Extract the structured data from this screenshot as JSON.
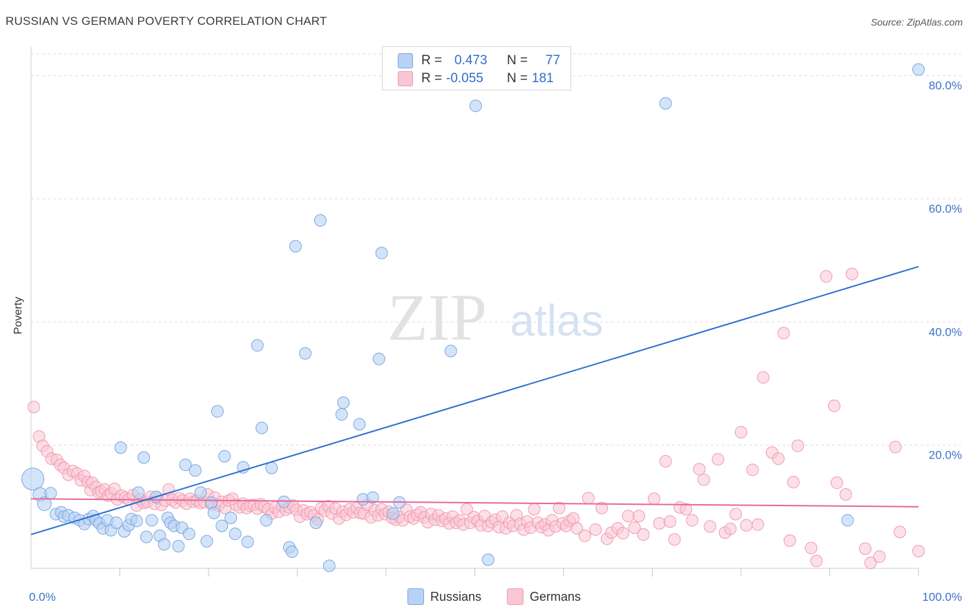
{
  "title": "RUSSIAN VS GERMAN POVERTY CORRELATION CHART",
  "source": "Source: ZipAtlas.com",
  "watermark": {
    "zip": "ZIP",
    "atlas": "atlas"
  },
  "legend": {
    "r_label": "R =",
    "n_label": "N =",
    "russians": {
      "r": "0.473",
      "n": "77"
    },
    "germans": {
      "r": "-0.055",
      "n": "181"
    }
  },
  "bottom_legend": {
    "russians": "Russians",
    "germans": "Germans"
  },
  "colors": {
    "russians_fill": "#b7d2f4",
    "russians_stroke": "#7aa7e0",
    "russians_line": "#2b6fd0",
    "germans_fill": "#f9c6d3",
    "germans_stroke": "#f09ab2",
    "germans_line": "#e8679a",
    "tick_label": "#3b73c9",
    "grid": "#dddddd"
  },
  "chart_data": {
    "type": "scatter",
    "title": "RUSSIAN VS GERMAN POVERTY CORRELATION CHART",
    "xlabel": "",
    "ylabel": "Poverty",
    "xlim": [
      0,
      100
    ],
    "ylim": [
      0,
      85
    ],
    "x_tick_labels": [
      "0.0%",
      "100.0%"
    ],
    "y_ticks": [
      20,
      40,
      60,
      80
    ],
    "y_tick_labels": [
      "20.0%",
      "40.0%",
      "60.0%",
      "80.0%"
    ],
    "grid": true,
    "legend_position": "top-center",
    "series": [
      {
        "name": "Russians",
        "r": 0.473,
        "n": 77,
        "trend": {
          "x": [
            0,
            100
          ],
          "y": [
            5.5,
            49
          ]
        },
        "points": [
          [
            0.2,
            14.5
          ],
          [
            1,
            12
          ],
          [
            1.5,
            10.5
          ],
          [
            2.2,
            12.2
          ],
          [
            2.8,
            8.8
          ],
          [
            3.4,
            9.1
          ],
          [
            3.7,
            8.4
          ],
          [
            4.2,
            8.6
          ],
          [
            4.9,
            8.2
          ],
          [
            5.5,
            7.8
          ],
          [
            6,
            7.2
          ],
          [
            6.5,
            8
          ],
          [
            7,
            8.5
          ],
          [
            7.3,
            7.8
          ],
          [
            7.7,
            7.3
          ],
          [
            8.1,
            6.5
          ],
          [
            8.6,
            7.8
          ],
          [
            9,
            6.2
          ],
          [
            9.6,
            7.4
          ],
          [
            10.1,
            19.6
          ],
          [
            10.5,
            6
          ],
          [
            11,
            7
          ],
          [
            11.3,
            8
          ],
          [
            11.9,
            7.7
          ],
          [
            12.1,
            12.3
          ],
          [
            12.7,
            18
          ],
          [
            13,
            5.1
          ],
          [
            13.6,
            7.8
          ],
          [
            14.1,
            11.6
          ],
          [
            14.5,
            5.3
          ],
          [
            15,
            3.9
          ],
          [
            15.4,
            8.2
          ],
          [
            15.7,
            7.4
          ],
          [
            16.1,
            6.9
          ],
          [
            16.6,
            3.6
          ],
          [
            17,
            6.6
          ],
          [
            17.4,
            16.8
          ],
          [
            17.8,
            5.6
          ],
          [
            18.5,
            15.9
          ],
          [
            19.1,
            12.3
          ],
          [
            19.8,
            4.4
          ],
          [
            20.3,
            10.7
          ],
          [
            20.6,
            9
          ],
          [
            21,
            25.5
          ],
          [
            21.5,
            6.9
          ],
          [
            21.8,
            18.2
          ],
          [
            22.5,
            8.2
          ],
          [
            23,
            5.6
          ],
          [
            23.9,
            16.4
          ],
          [
            24.4,
            4.3
          ],
          [
            25.5,
            36.2
          ],
          [
            26,
            22.8
          ],
          [
            26.5,
            7.8
          ],
          [
            27.1,
            16.3
          ],
          [
            28.5,
            10.8
          ],
          [
            29.1,
            3.4
          ],
          [
            29.4,
            2.7
          ],
          [
            29.8,
            52.3
          ],
          [
            30.9,
            34.9
          ],
          [
            32.1,
            7.4
          ],
          [
            32.6,
            56.5
          ],
          [
            33.6,
            0.4
          ],
          [
            35,
            25
          ],
          [
            35.2,
            26.9
          ],
          [
            37,
            23.4
          ],
          [
            37.4,
            11.2
          ],
          [
            38.5,
            11.5
          ],
          [
            39.2,
            34
          ],
          [
            39.5,
            51.2
          ],
          [
            40.8,
            8.9
          ],
          [
            41.5,
            10.7
          ],
          [
            47.3,
            35.3
          ],
          [
            50.1,
            75.1
          ],
          [
            51.5,
            1.4
          ],
          [
            71.5,
            75.5
          ],
          [
            92,
            7.8
          ],
          [
            100,
            81
          ]
        ]
      },
      {
        "name": "Germans",
        "r": -0.055,
        "n": 181,
        "trend": {
          "x": [
            0,
            100
          ],
          "y": [
            11.3,
            10
          ]
        },
        "points": [
          [
            0.3,
            26.2
          ],
          [
            0.9,
            21.4
          ],
          [
            1.3,
            19.9
          ],
          [
            1.8,
            19
          ],
          [
            2.3,
            17.8
          ],
          [
            2.9,
            17.6
          ],
          [
            3.3,
            16.8
          ],
          [
            3.7,
            16.3
          ],
          [
            4.2,
            15.2
          ],
          [
            4.7,
            15.8
          ],
          [
            5.2,
            15.4
          ],
          [
            5.6,
            14.3
          ],
          [
            6,
            15
          ],
          [
            6.4,
            14
          ],
          [
            6.7,
            12.7
          ],
          [
            6.9,
            13.9
          ],
          [
            7.3,
            13.2
          ],
          [
            7.6,
            12.3
          ],
          [
            7.9,
            12.5
          ],
          [
            8.3,
            12.8
          ],
          [
            8.7,
            11.8
          ],
          [
            9,
            12.2
          ],
          [
            9.4,
            12.9
          ],
          [
            9.7,
            11.2
          ],
          [
            10.2,
            11.8
          ],
          [
            10.6,
            11.5
          ],
          [
            11,
            11.2
          ],
          [
            11.5,
            11.9
          ],
          [
            11.9,
            10.2
          ],
          [
            12.3,
            11.2
          ],
          [
            12.7,
            10.6
          ],
          [
            13.1,
            10.8
          ],
          [
            13.5,
            11.6
          ],
          [
            13.9,
            10.5
          ],
          [
            14.3,
            11.4
          ],
          [
            14.7,
            10.3
          ],
          [
            15.1,
            11
          ],
          [
            15.5,
            12.8
          ],
          [
            15.9,
            11.1
          ],
          [
            16.3,
            10.7
          ],
          [
            16.7,
            11.4
          ],
          [
            17.1,
            11
          ],
          [
            17.5,
            10.5
          ],
          [
            17.9,
            11.3
          ],
          [
            18.3,
            10.8
          ],
          [
            18.7,
            11
          ],
          [
            19.1,
            10.6
          ],
          [
            19.5,
            10.8
          ],
          [
            19.9,
            12
          ],
          [
            20.3,
            10.4
          ],
          [
            20.7,
            11.5
          ],
          [
            21.1,
            10.2
          ],
          [
            21.5,
            10.8
          ],
          [
            21.9,
            9.8
          ],
          [
            22.3,
            11
          ],
          [
            22.7,
            11.3
          ],
          [
            23.1,
            10.3
          ],
          [
            23.5,
            9.9
          ],
          [
            23.9,
            10.5
          ],
          [
            24.3,
            9.8
          ],
          [
            24.7,
            10.2
          ],
          [
            25.1,
            10.3
          ],
          [
            25.5,
            9.7
          ],
          [
            25.9,
            10.4
          ],
          [
            26.3,
            10
          ],
          [
            26.7,
            9.6
          ],
          [
            27.1,
            8.9
          ],
          [
            27.5,
            9.9
          ],
          [
            27.9,
            9.2
          ],
          [
            28.3,
            10.1
          ],
          [
            28.7,
            9.5
          ],
          [
            29.1,
            9.9
          ],
          [
            29.5,
            10.2
          ],
          [
            29.9,
            9.5
          ],
          [
            30.3,
            8.4
          ],
          [
            30.7,
            9.4
          ],
          [
            31.1,
            8.8
          ],
          [
            31.5,
            9.1
          ],
          [
            31.9,
            8.6
          ],
          [
            32.3,
            7.9
          ],
          [
            32.7,
            9.8
          ],
          [
            33.1,
            9.4
          ],
          [
            33.5,
            10.1
          ],
          [
            33.9,
            8.9
          ],
          [
            34.3,
            9.7
          ],
          [
            34.7,
            8.1
          ],
          [
            35.1,
            9.2
          ],
          [
            35.5,
            8.7
          ],
          [
            35.9,
            9.6
          ],
          [
            36.3,
            9.1
          ],
          [
            36.7,
            9.8
          ],
          [
            37.1,
            9
          ],
          [
            37.5,
            8.9
          ],
          [
            37.9,
            10.3
          ],
          [
            38.3,
            8.3
          ],
          [
            38.7,
            9.4
          ],
          [
            39.1,
            8.6
          ],
          [
            39.5,
            9.6
          ],
          [
            39.9,
            8.8
          ],
          [
            40.3,
            9.2
          ],
          [
            40.7,
            8.2
          ],
          [
            41.1,
            7.9
          ],
          [
            41.5,
            8.4
          ],
          [
            41.9,
            7.8
          ],
          [
            42.3,
            9.5
          ],
          [
            42.7,
            8.4
          ],
          [
            43.1,
            8.1
          ],
          [
            43.5,
            8.7
          ],
          [
            43.9,
            9.1
          ],
          [
            44.3,
            8.3
          ],
          [
            44.7,
            7.5
          ],
          [
            45.1,
            8.8
          ],
          [
            45.5,
            7.9
          ],
          [
            45.9,
            8.6
          ],
          [
            46.3,
            7.7
          ],
          [
            46.7,
            8.1
          ],
          [
            47.1,
            7.3
          ],
          [
            47.5,
            8.4
          ],
          [
            47.9,
            7.4
          ],
          [
            48.3,
            7.8
          ],
          [
            48.7,
            7.1
          ],
          [
            49.1,
            9.6
          ],
          [
            49.5,
            7.4
          ],
          [
            49.9,
            8.3
          ],
          [
            50.3,
            7.7
          ],
          [
            50.7,
            7
          ],
          [
            51.1,
            8.5
          ],
          [
            51.5,
            6.9
          ],
          [
            51.9,
            7.5
          ],
          [
            52.3,
            7.9
          ],
          [
            52.7,
            6.7
          ],
          [
            53.1,
            8.4
          ],
          [
            53.5,
            6.5
          ],
          [
            53.9,
            7.4
          ],
          [
            54.3,
            6.9
          ],
          [
            54.7,
            8.6
          ],
          [
            55.1,
            7.2
          ],
          [
            55.5,
            6.3
          ],
          [
            55.9,
            7.6
          ],
          [
            56.3,
            6.6
          ],
          [
            56.7,
            9.6
          ],
          [
            57.1,
            7.4
          ],
          [
            57.5,
            6.7
          ],
          [
            57.9,
            7.1
          ],
          [
            58.3,
            6.2
          ],
          [
            58.7,
            7.8
          ],
          [
            59.1,
            6.8
          ],
          [
            59.5,
            9.8
          ],
          [
            59.9,
            7.3
          ],
          [
            60.3,
            6.9
          ],
          [
            60.7,
            7.7
          ],
          [
            61.1,
            8.1
          ],
          [
            61.5,
            6.5
          ],
          [
            62.4,
            5.3
          ],
          [
            62.8,
            11.4
          ],
          [
            63.6,
            6.3
          ],
          [
            64.3,
            9.8
          ],
          [
            64.9,
            4.8
          ],
          [
            65.4,
            5.8
          ],
          [
            66.1,
            6.5
          ],
          [
            66.7,
            5.7
          ],
          [
            67.3,
            8.5
          ],
          [
            68,
            6.6
          ],
          [
            68.5,
            8.5
          ],
          [
            69,
            5.5
          ],
          [
            70.2,
            11.3
          ],
          [
            70.8,
            7.3
          ],
          [
            71.5,
            17.4
          ],
          [
            72,
            7.6
          ],
          [
            72.5,
            4.7
          ],
          [
            73.1,
            9.9
          ],
          [
            73.8,
            9.6
          ],
          [
            74.5,
            7.8
          ],
          [
            75.3,
            16.1
          ],
          [
            75.8,
            14.4
          ],
          [
            76.5,
            6.8
          ],
          [
            77.4,
            17.7
          ],
          [
            78.2,
            5.8
          ],
          [
            78.8,
            6.4
          ],
          [
            79.4,
            8.8
          ],
          [
            80,
            22.1
          ],
          [
            80.6,
            7
          ],
          [
            81.3,
            16
          ],
          [
            81.9,
            7.1
          ],
          [
            82.5,
            31
          ],
          [
            83.5,
            18.8
          ],
          [
            84.2,
            17.8
          ],
          [
            84.8,
            38.2
          ],
          [
            85.5,
            4.5
          ],
          [
            85.9,
            14
          ],
          [
            86.4,
            19.9
          ],
          [
            87.9,
            3.3
          ],
          [
            88.5,
            1.2
          ],
          [
            89.6,
            47.4
          ],
          [
            90.5,
            26.4
          ],
          [
            90.8,
            13.9
          ],
          [
            91.8,
            12
          ],
          [
            92.5,
            47.8
          ],
          [
            94,
            3.2
          ],
          [
            94.6,
            0.9
          ],
          [
            95.6,
            1.9
          ],
          [
            97.4,
            19.7
          ],
          [
            97.9,
            5.9
          ],
          [
            100,
            2.8
          ]
        ]
      }
    ]
  }
}
